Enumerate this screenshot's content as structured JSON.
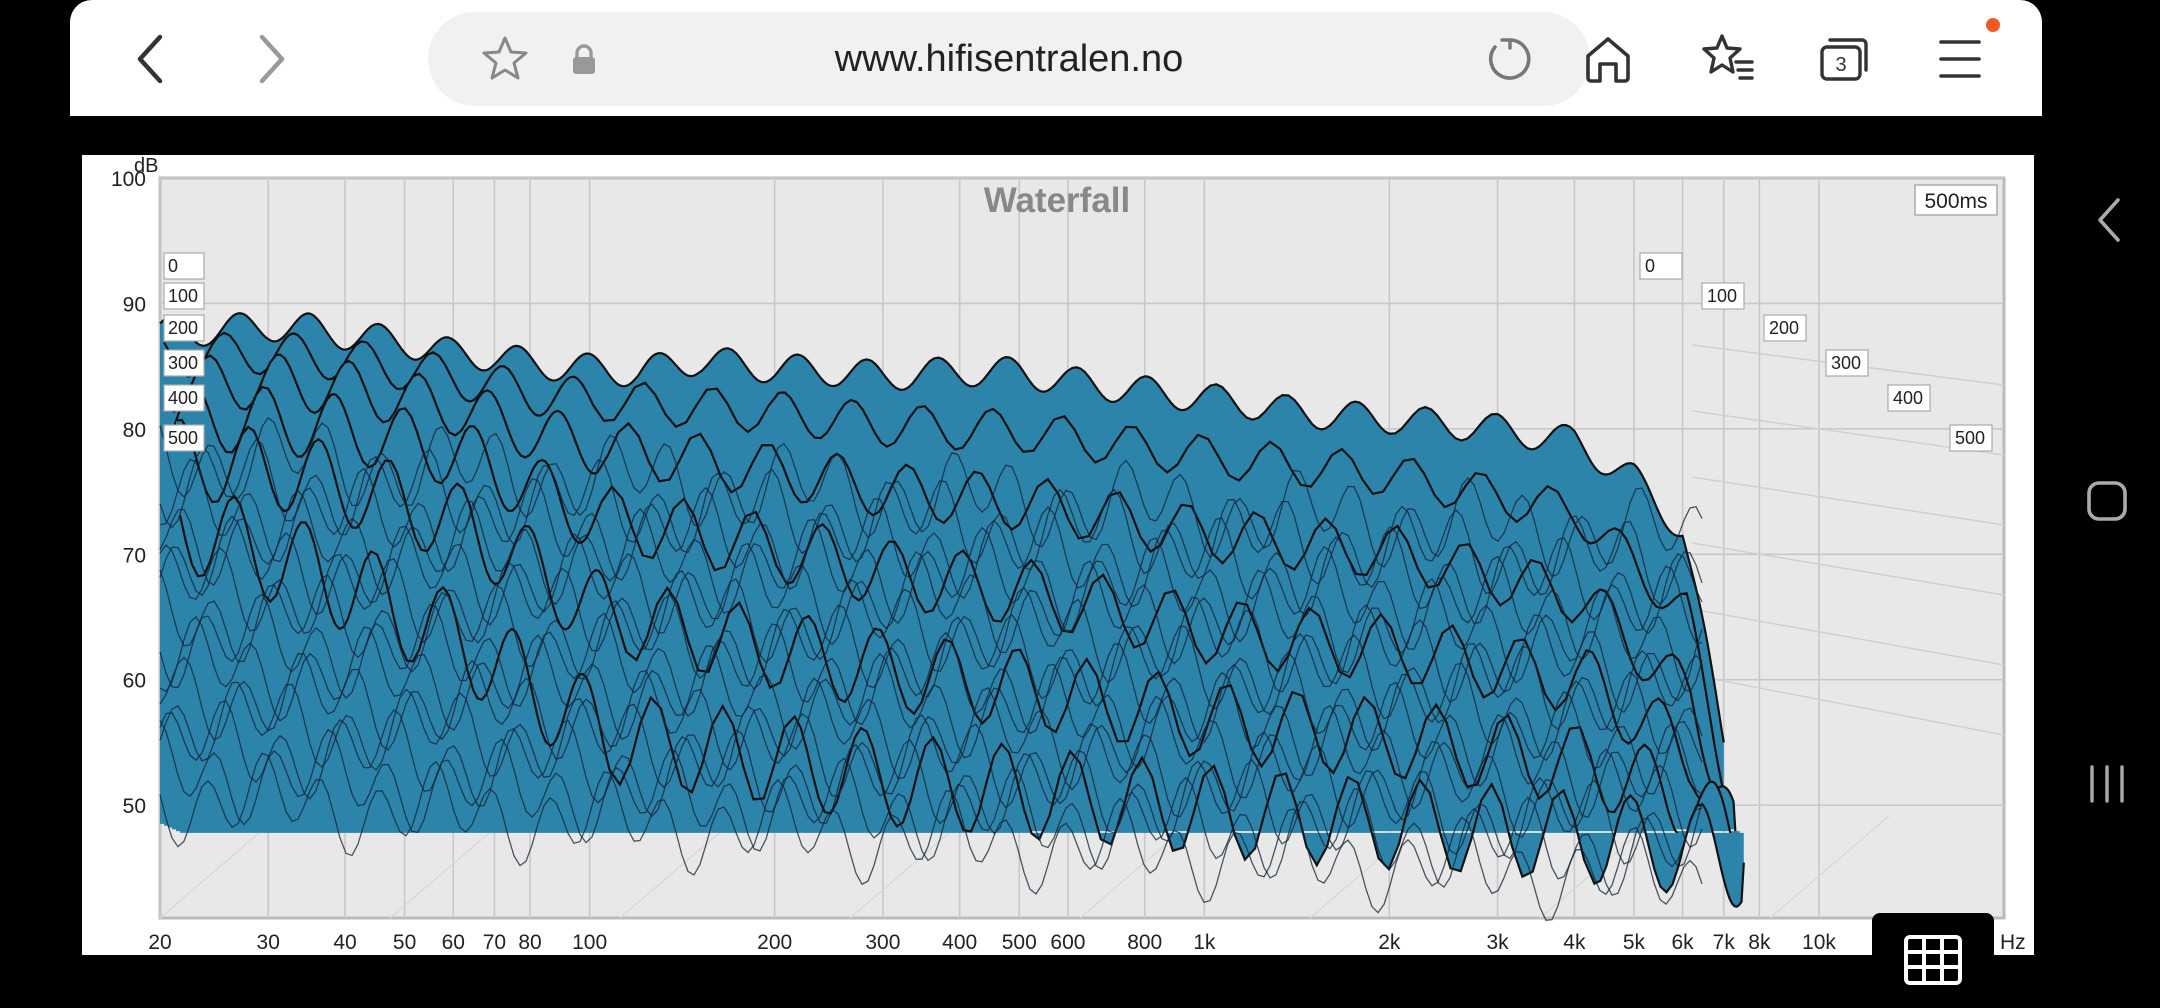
{
  "browser": {
    "url": "www.hifisentralen.no",
    "tab_count": "3",
    "icons": [
      "back-icon",
      "forward-icon",
      "star-icon",
      "lock-icon",
      "reload-icon",
      "home-icon",
      "bookmarks-icon",
      "tabs-icon",
      "menu-icon"
    ],
    "notification_color": "#f05a22"
  },
  "system_nav": {
    "icons": [
      "back-nav-icon",
      "home-nav-icon",
      "recents-nav-icon"
    ]
  },
  "chart_data": {
    "type": "area",
    "title": "Waterfall",
    "time_label": "500ms",
    "y_unit": "dB",
    "x_unit": "Hz",
    "y_ticks": [
      100,
      90,
      80,
      70,
      60,
      50
    ],
    "ylim": [
      41,
      100
    ],
    "x_tick_labels": [
      "20",
      "30",
      "40",
      "50",
      "60",
      "70",
      "80",
      "100",
      "200",
      "300",
      "400",
      "500",
      "600",
      "800",
      "1k",
      "2k",
      "3k",
      "4k",
      "5k",
      "6k",
      "7k",
      "8k",
      "10k"
    ],
    "x_tick_values": [
      20,
      30,
      40,
      50,
      60,
      70,
      80,
      100,
      200,
      300,
      400,
      500,
      600,
      800,
      1000,
      2000,
      3000,
      4000,
      5000,
      6000,
      7000,
      8000,
      10000
    ],
    "xlim": [
      20,
      20000
    ],
    "time_slices_ms": [
      "0",
      "100",
      "200",
      "300",
      "400",
      "500"
    ],
    "fill_color": "#2d84ab",
    "line_color": "#111111",
    "grid": true,
    "series": [
      {
        "name": "0",
        "x": [
          20,
          25,
          30,
          35,
          40,
          50,
          60,
          70,
          80,
          100,
          120,
          150,
          200,
          250,
          300,
          400,
          500,
          600,
          800,
          1000,
          1500,
          2000,
          3000,
          4000,
          5000,
          6000,
          7000
        ],
        "y": [
          87.6,
          87.9,
          88.2,
          88.0,
          87.5,
          86.9,
          86.0,
          85.8,
          85.2,
          84.8,
          84.5,
          85.5,
          84.8,
          84.6,
          84.2,
          84.6,
          84.5,
          83.8,
          83.0,
          82.5,
          81.2,
          80.8,
          80.0,
          79.0,
          76.0,
          72.0,
          55.0
        ]
      },
      {
        "name": "100",
        "x": [
          20,
          30,
          40,
          60,
          80,
          100,
          200,
          300,
          500,
          1000,
          2000,
          4000,
          6000,
          7000
        ],
        "y": [
          86.5,
          86.8,
          86.2,
          84.8,
          83.5,
          83.0,
          82.0,
          81.0,
          80.5,
          78.5,
          77.0,
          74.0,
          66.0,
          52.0
        ]
      },
      {
        "name": "200",
        "x": [
          20,
          30,
          40,
          60,
          80,
          100,
          200,
          300,
          500,
          1000,
          2000,
          4000,
          6000,
          7000
        ],
        "y": [
          85.0,
          85.2,
          84.6,
          83.0,
          81.0,
          80.0,
          78.0,
          76.5,
          75.5,
          73.0,
          71.5,
          68.0,
          60.0,
          50.5
        ]
      },
      {
        "name": "300",
        "x": [
          20,
          30,
          40,
          60,
          80,
          100,
          200,
          300,
          500,
          1000,
          2000,
          4000,
          6000,
          7000
        ],
        "y": [
          83.0,
          82.8,
          82.0,
          80.0,
          77.0,
          75.0,
          72.5,
          70.5,
          69.0,
          66.0,
          64.5,
          62.0,
          56.0,
          49.5
        ]
      },
      {
        "name": "400",
        "x": [
          20,
          30,
          40,
          60,
          80,
          100,
          200,
          300,
          500,
          1000,
          2000,
          4000,
          6000,
          7000
        ],
        "y": [
          80.5,
          79.5,
          78.0,
          75.0,
          71.0,
          68.0,
          65.0,
          63.5,
          62.0,
          59.5,
          58.0,
          56.0,
          53.0,
          49.0
        ]
      },
      {
        "name": "500",
        "x": [
          20,
          30,
          40,
          60,
          80,
          100,
          200,
          300,
          500,
          1000,
          2000,
          4000,
          6000,
          7000
        ],
        "y": [
          76.0,
          73.0,
          70.5,
          66.0,
          62.0,
          59.0,
          57.0,
          55.5,
          54.5,
          53.0,
          52.0,
          51.0,
          50.0,
          49.0
        ]
      }
    ]
  }
}
